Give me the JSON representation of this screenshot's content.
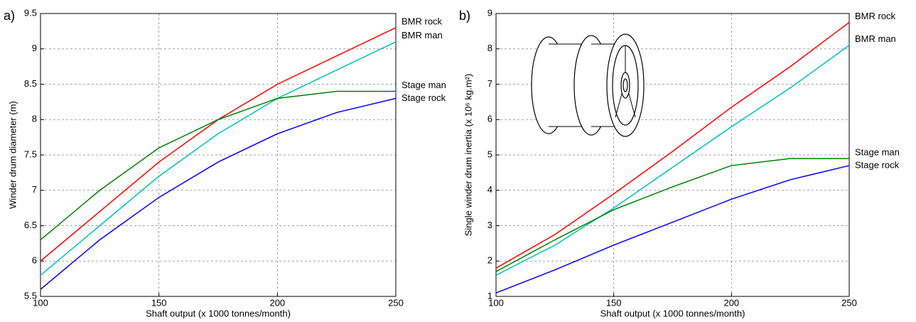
{
  "chart_data": [
    {
      "type": "line",
      "panel_label": "a)",
      "x_label": "Shaft output (x 1000 tonnes/month)",
      "y_label": "Winder drum diameter (m)",
      "x": [
        100,
        125,
        150,
        175,
        200,
        225,
        250
      ],
      "xlim": [
        100,
        250
      ],
      "xticks": [
        100,
        150,
        200,
        250
      ],
      "ylim": [
        5.5,
        9.5
      ],
      "yticks": [
        5.5,
        6,
        6.5,
        7,
        7.5,
        8,
        8.5,
        9,
        9.5
      ],
      "grid": true,
      "series": [
        {
          "name": "BMR rock",
          "color": "#ff0000",
          "values": [
            6.0,
            6.7,
            7.4,
            8.0,
            8.5,
            8.9,
            9.3
          ]
        },
        {
          "name": "BMR man",
          "color": "#00bfbf",
          "values": [
            5.8,
            6.5,
            7.2,
            7.8,
            8.3,
            8.7,
            9.1
          ]
        },
        {
          "name": "Stage man",
          "color": "#008000",
          "values": [
            6.3,
            7.0,
            7.6,
            8.0,
            8.3,
            8.4,
            8.4
          ]
        },
        {
          "name": "Stage rock",
          "color": "#0000ff",
          "values": [
            5.6,
            6.3,
            6.9,
            7.4,
            7.8,
            8.1,
            8.3
          ]
        }
      ]
    },
    {
      "type": "line",
      "panel_label": "b)",
      "x_label": "Shaft output (x 1000 tonnes/month)",
      "y_label": "Single winder drum inertia (x 10⁶ kg.m²)",
      "x": [
        100,
        125,
        150,
        175,
        200,
        225,
        250
      ],
      "xlim": [
        100,
        250
      ],
      "xticks": [
        100,
        150,
        200,
        250
      ],
      "ylim": [
        1,
        9
      ],
      "yticks": [
        1,
        2,
        3,
        4,
        5,
        6,
        7,
        8,
        9
      ],
      "grid": true,
      "series": [
        {
          "name": "BMR rock",
          "color": "#ff0000",
          "values": [
            1.8,
            2.75,
            3.9,
            5.1,
            6.35,
            7.5,
            8.75
          ]
        },
        {
          "name": "BMR man",
          "color": "#00bfbf",
          "values": [
            1.6,
            2.45,
            3.5,
            4.65,
            5.8,
            6.9,
            8.1
          ]
        },
        {
          "name": "Stage man",
          "color": "#008000",
          "values": [
            1.7,
            2.6,
            3.45,
            4.1,
            4.7,
            4.9,
            4.9
          ]
        },
        {
          "name": "Stage rock",
          "color": "#0000ff",
          "values": [
            1.1,
            1.75,
            2.45,
            3.1,
            3.75,
            4.3,
            4.7
          ]
        }
      ]
    }
  ]
}
